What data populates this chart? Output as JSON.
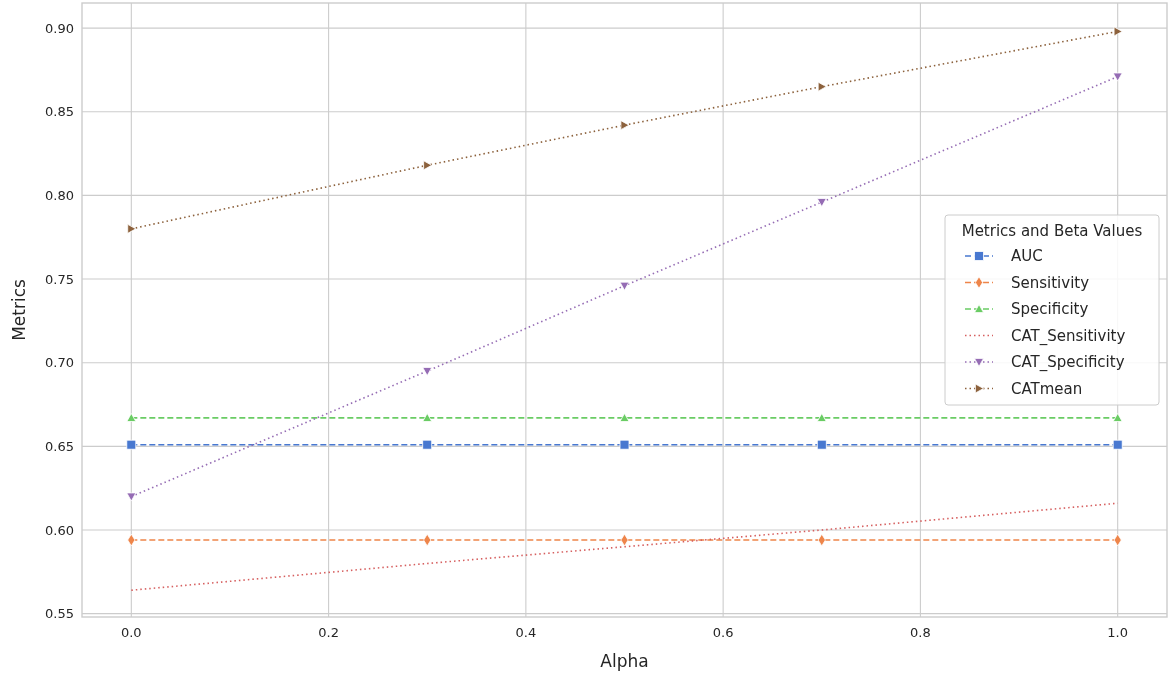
{
  "chart_data": {
    "type": "line",
    "xlabel": "Alpha",
    "ylabel": "Metrics",
    "legend_title": "Metrics and Beta Values",
    "x": [
      0,
      0.3,
      0.5,
      0.7,
      1.0
    ],
    "xlim": [
      -0.05,
      1.05
    ],
    "xticks": [
      {
        "value": 0,
        "label": "0.0"
      },
      0.2,
      0.4,
      0.6,
      0.8,
      {
        "value": 1,
        "label": "1.0"
      }
    ],
    "ylim": [
      0.548,
      0.915
    ],
    "yticks": [
      0.55,
      {
        "value": 0.6,
        "label": "0.60"
      },
      0.65,
      {
        "value": 0.7,
        "label": "0.70"
      },
      0.75,
      {
        "value": 0.8,
        "label": "0.80"
      },
      0.85,
      {
        "value": 0.9,
        "label": "0.90"
      }
    ],
    "grid": true,
    "legend": "right",
    "series": [
      {
        "name": "AUC",
        "color": "#4878d0",
        "marker": "square",
        "line_style": "dashed",
        "values": [
          0.651,
          0.651,
          0.651,
          0.651,
          0.651
        ]
      },
      {
        "name": "Sensitivity",
        "color": "#ee854a",
        "marker": "diamond",
        "line_style": "dashed",
        "values": [
          0.594,
          0.594,
          0.594,
          0.594,
          0.594
        ]
      },
      {
        "name": "Specificity",
        "color": "#6acc64",
        "marker": "triangle",
        "line_style": "dashed",
        "values": [
          0.667,
          0.667,
          0.667,
          0.667,
          0.667
        ]
      },
      {
        "name": "CAT_Sensitivity",
        "color": "#d65f5f",
        "marker": "none",
        "line_style": "dotted",
        "values": [
          0.564,
          0.58,
          0.59,
          0.6,
          0.616
        ]
      },
      {
        "name": "CAT_Specificity",
        "color": "#956cb4",
        "marker": "triangle-down",
        "line_style": "dotted",
        "values": [
          0.62,
          0.695,
          0.746,
          0.796,
          0.871
        ]
      },
      {
        "name": "CATmean",
        "color": "#8c613c",
        "marker": "triangle-right",
        "line_style": "dotted",
        "values": [
          0.78,
          0.818,
          0.842,
          0.865,
          0.898
        ]
      }
    ]
  }
}
